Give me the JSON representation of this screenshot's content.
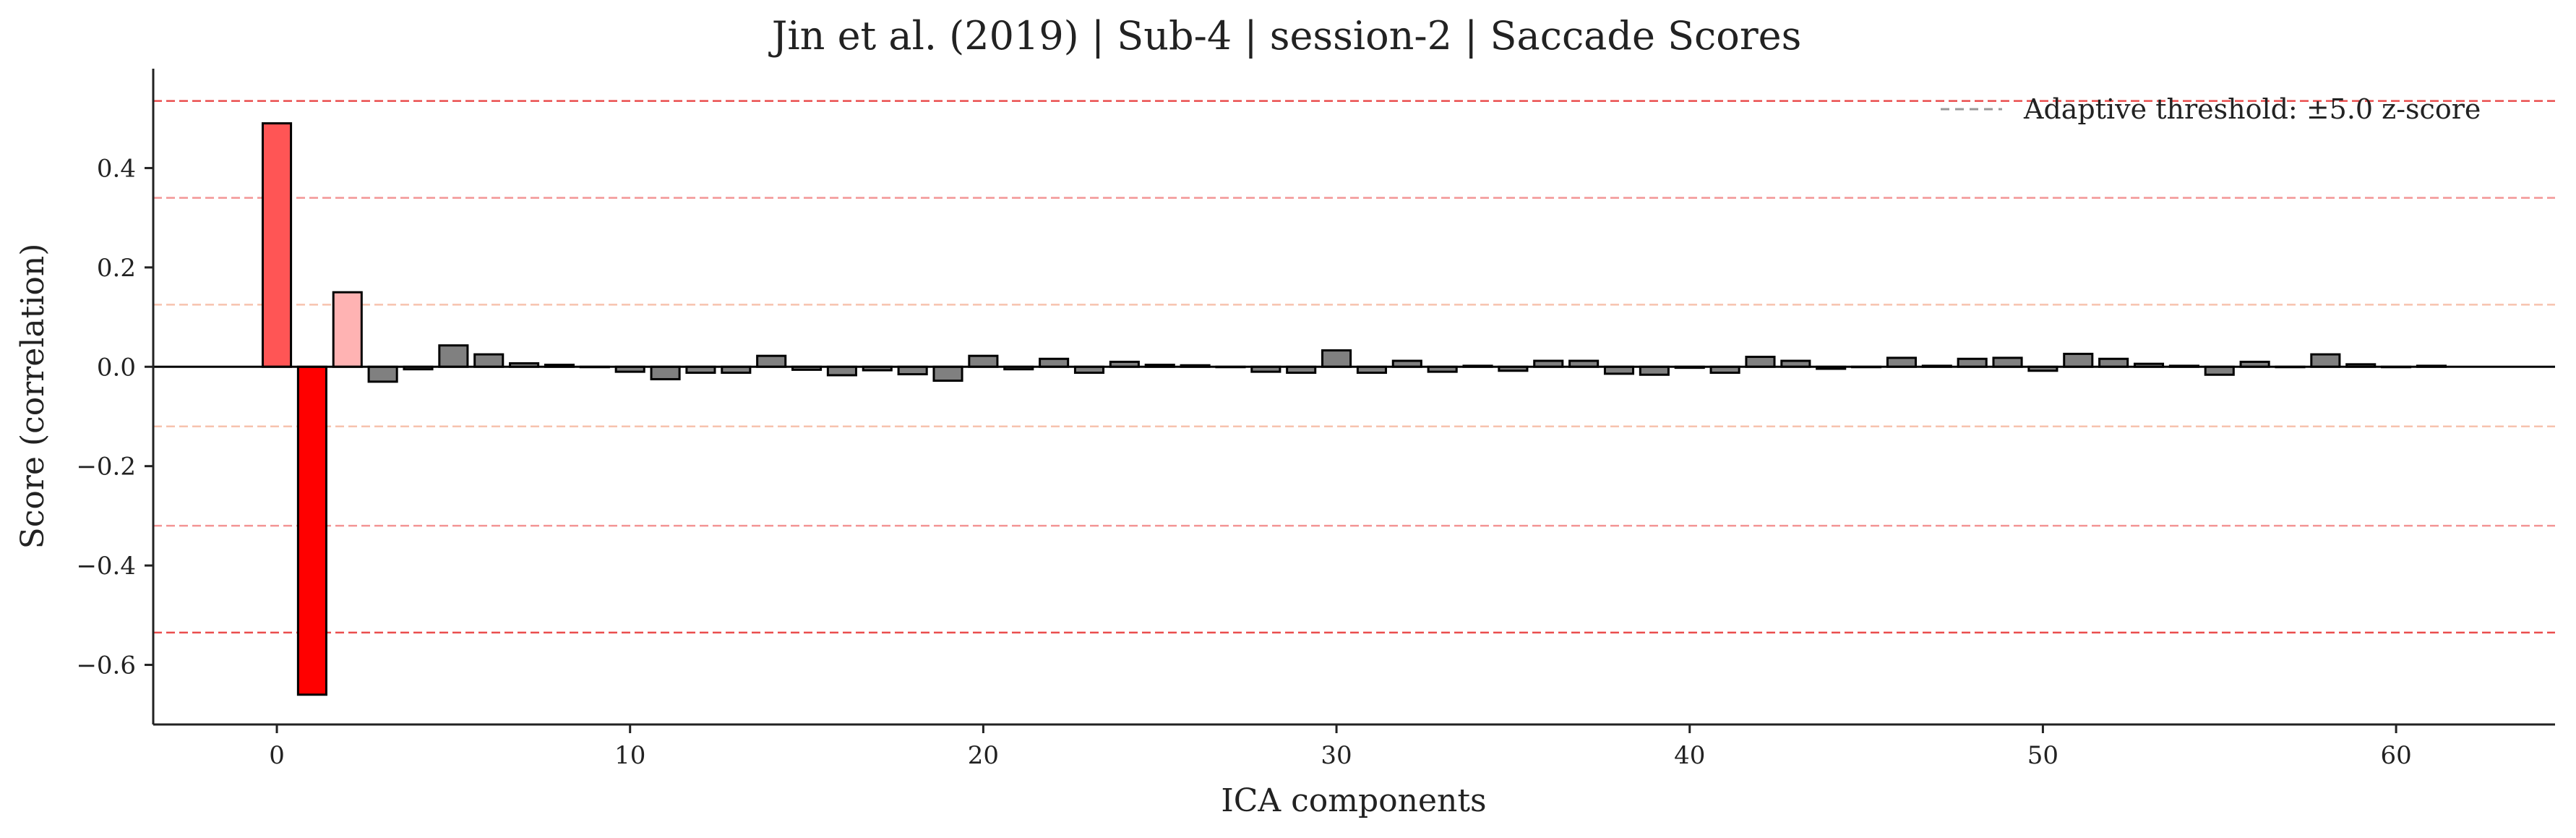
{
  "chart_data": {
    "type": "bar",
    "title": "Jin et al. (2019) | Sub-4 | session-2 | Saccade Scores",
    "xlabel": "ICA components",
    "ylabel": "Score (correlation)",
    "xlim": [
      -3.5,
      64.5
    ],
    "ylim": [
      -0.72,
      0.6
    ],
    "xticks": [
      0,
      10,
      20,
      30,
      40,
      50,
      60
    ],
    "xtick_labels": [
      "0",
      "10",
      "20",
      "30",
      "40",
      "50",
      "60"
    ],
    "yticks": [
      -0.6,
      -0.4,
      -0.2,
      0.0,
      0.2,
      0.4
    ],
    "ytick_labels": [
      "−0.6",
      "−0.4",
      "−0.2",
      "0.0",
      "0.2",
      "0.4"
    ],
    "grid": false,
    "legend": {
      "position": "top-right",
      "entries": [
        {
          "label": "Adaptive threshold: ±5.0 z-score",
          "style": "dashed",
          "color": "#999999"
        }
      ]
    },
    "threshold_lines": [
      {
        "y": 0.535,
        "color": "#e83a3a",
        "opacity": 0.9
      },
      {
        "y": 0.34,
        "color": "#f07a7a",
        "opacity": 0.8
      },
      {
        "y": 0.125,
        "color": "#f5b49a",
        "opacity": 0.8
      },
      {
        "y": -0.12,
        "color": "#f5b49a",
        "opacity": 0.8
      },
      {
        "y": -0.32,
        "color": "#f07a7a",
        "opacity": 0.8
      },
      {
        "y": -0.535,
        "color": "#e83a3a",
        "opacity": 0.9
      }
    ],
    "series": [
      {
        "x": [
          0,
          1,
          2,
          3,
          4,
          5,
          6,
          7,
          8,
          9,
          10,
          11,
          12,
          13,
          14,
          15,
          16,
          17,
          18,
          19,
          20,
          21,
          22,
          23,
          24,
          25,
          26,
          27,
          28,
          29,
          30,
          31,
          32,
          33,
          34,
          35,
          36,
          37,
          38,
          39,
          40,
          41,
          42,
          43,
          44,
          45,
          46,
          47,
          48,
          49,
          50,
          51,
          52,
          53,
          54,
          55,
          56,
          57,
          58,
          59,
          60,
          61
        ],
        "values": [
          0.49,
          -0.66,
          0.15,
          -0.03,
          -0.005,
          0.043,
          0.025,
          0.007,
          0.004,
          0.0,
          -0.01,
          -0.025,
          -0.012,
          -0.012,
          0.022,
          -0.006,
          -0.017,
          -0.007,
          -0.015,
          -0.028,
          0.022,
          -0.005,
          0.016,
          -0.012,
          0.01,
          0.004,
          0.003,
          0.0,
          -0.01,
          -0.012,
          0.033,
          -0.012,
          0.012,
          -0.01,
          0.002,
          -0.008,
          0.012,
          0.012,
          -0.014,
          -0.016,
          -0.002,
          -0.012,
          0.02,
          0.012,
          -0.004,
          0.0,
          0.018,
          0.002,
          0.016,
          0.018,
          -0.008,
          0.026,
          0.016,
          0.006,
          0.002,
          -0.016,
          0.01,
          0.0,
          0.025,
          0.005,
          0.0,
          0.002
        ],
        "colors": [
          "#ff5555",
          "#ff0000",
          "#ffb3b3"
        ],
        "default_color": "#808080",
        "edge_color": "#000000"
      }
    ]
  }
}
